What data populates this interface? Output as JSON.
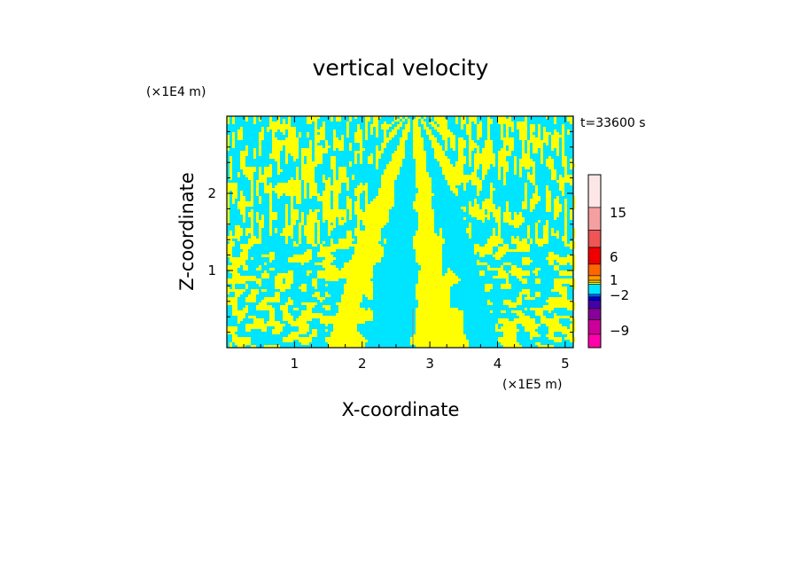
{
  "chart_data": {
    "type": "heatmap",
    "title": "vertical velocity",
    "xlabel": "X-coordinate",
    "ylabel": "Z-coordinate",
    "x_unit": "(×1E5 m)",
    "y_unit": "(×1E4 m)",
    "time_label": "t=33600 s",
    "xlim": [
      0,
      5.12
    ],
    "ylim": [
      0,
      3.0
    ],
    "x_ticks": [
      {
        "value": 1,
        "label": "1"
      },
      {
        "value": 2,
        "label": "2"
      },
      {
        "value": 3,
        "label": "3"
      },
      {
        "value": 4,
        "label": "4"
      },
      {
        "value": 5,
        "label": "5"
      }
    ],
    "y_ticks": [
      {
        "value": 1,
        "label": "1"
      },
      {
        "value": 2,
        "label": "2"
      }
    ],
    "colors": {
      "positive_small": "#ffff00",
      "negative_small": "#00e5ff"
    },
    "colorbar": {
      "labels": [
        {
          "value": 15,
          "label": "15"
        },
        {
          "value": 6,
          "label": "6"
        },
        {
          "value": 1,
          "label": "1"
        },
        {
          "value": -2,
          "label": "−2"
        },
        {
          "value": -9,
          "label": "−9"
        }
      ],
      "bands": [
        {
          "color": "#ff00aa"
        },
        {
          "color": "#cc0099"
        },
        {
          "color": "#880099"
        },
        {
          "color": "#4400aa"
        },
        {
          "color": "#0000cc"
        },
        {
          "color": "#0066ff"
        },
        {
          "color": "#00e5ff"
        },
        {
          "color": "#ffff00"
        },
        {
          "color": "#ffcc00"
        },
        {
          "color": "#ff9900"
        },
        {
          "color": "#ff6600"
        },
        {
          "color": "#ee0000"
        },
        {
          "color": "#ee5555"
        },
        {
          "color": "#f4a0a0"
        },
        {
          "color": "#fde6e6"
        }
      ]
    }
  }
}
